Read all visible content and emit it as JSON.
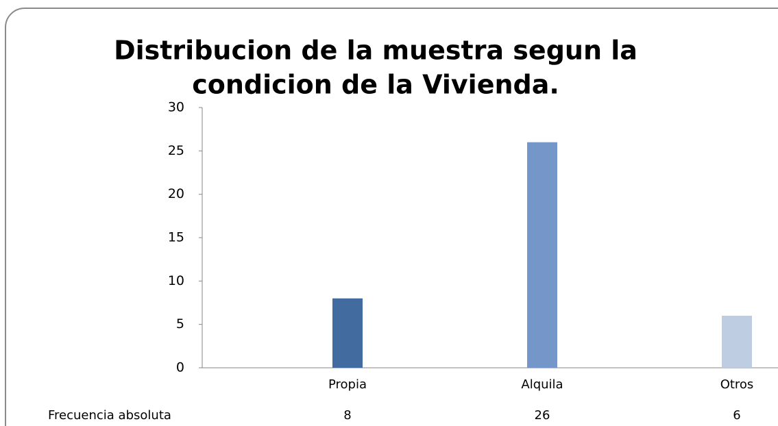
{
  "chart_data": {
    "type": "bar",
    "title": [
      "Distribucion de la muestra segun la",
      "condicion de la Vivienda."
    ],
    "categories": [
      "Propia",
      "Alquila",
      "Otros"
    ],
    "series": [
      {
        "name": "Frecuencia absoluta",
        "values": [
          8,
          26,
          6
        ]
      }
    ],
    "colors": [
      "#426c9f",
      "#7596c8",
      "#bfcde3"
    ],
    "ylim": [
      0,
      30
    ],
    "yticks": [
      0,
      5,
      10,
      15,
      20,
      25,
      30
    ],
    "grid": false
  }
}
